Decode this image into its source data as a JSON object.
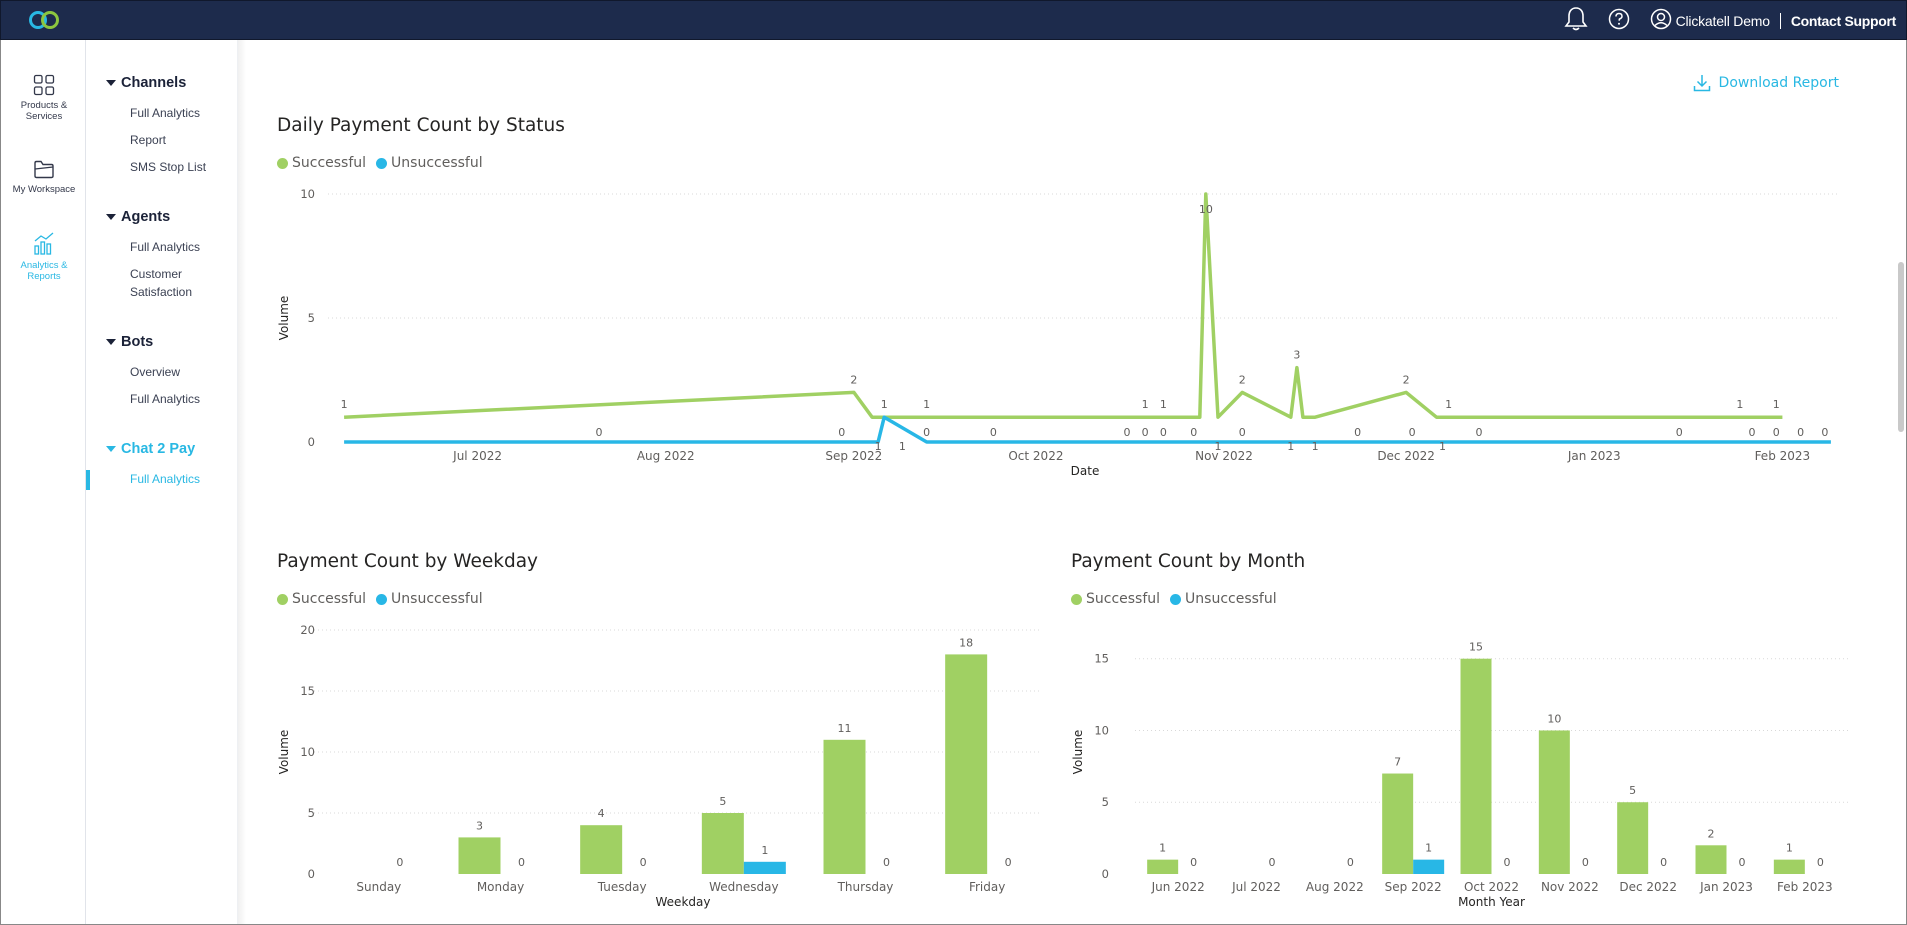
{
  "topbar": {
    "user_name": "Clickatell Demo",
    "contact_support": "Contact Support",
    "brand_color": "#1d2b4c",
    "accent_color": "#29b8e3"
  },
  "rail": {
    "items": [
      {
        "label_line1": "Products &",
        "label_line2": "Services",
        "icon": "grid-icon"
      },
      {
        "label_line1": "My Workspace",
        "label_line2": "",
        "icon": "folder-icon"
      },
      {
        "label_line1": "Analytics &",
        "label_line2": "Reports",
        "icon": "bar-chart-icon"
      }
    ]
  },
  "nav": {
    "sections": [
      {
        "label": "Channels",
        "links": [
          "Full Analytics",
          "Report",
          "SMS Stop List"
        ]
      },
      {
        "label": "Agents",
        "links": [
          "Full Analytics",
          "Customer",
          "Satisfaction"
        ]
      },
      {
        "label": "Bots",
        "links": [
          "Overview",
          "Full Analytics"
        ]
      },
      {
        "label": "Chat 2 Pay",
        "links": [
          "Full Analytics"
        ]
      }
    ]
  },
  "main": {
    "download_label": "Download Report"
  },
  "legend": {
    "successful": "Successful",
    "unsuccessful": "Unsuccessful",
    "successful_color": "#a0d063",
    "unsuccessful_color": "#28b7e6"
  },
  "chart_data": [
    {
      "id": "daily",
      "type": "line",
      "title": "Daily Payment Count by Status",
      "xlabel": "Date",
      "ylabel": "Volume",
      "ylim": [
        0,
        10
      ],
      "yticks": [
        0,
        5,
        10
      ],
      "xticks": [
        "Jul 2022",
        "Aug 2022",
        "Sep 2022",
        "Oct 2022",
        "Nov 2022",
        "Dec 2022",
        "Jan 2023",
        "Feb 2023"
      ],
      "grid": true,
      "legend_position": "top-left",
      "series": [
        {
          "name": "Successful",
          "color": "#a0d063",
          "points": [
            [
              "2022-06-09",
              1
            ],
            [
              "2022-09-01",
              2
            ],
            [
              "2022-09-04",
              1
            ],
            [
              "2022-09-10",
              1
            ],
            [
              "2022-10-25",
              1
            ],
            [
              "2022-10-28",
              1
            ],
            [
              "2022-10-29",
              10
            ],
            [
              "2022-10-31",
              1
            ],
            [
              "2022-11-04",
              2
            ],
            [
              "2022-11-12",
              1
            ],
            [
              "2022-11-13",
              3
            ],
            [
              "2022-11-14",
              1
            ],
            [
              "2022-11-16",
              1
            ],
            [
              "2022-12-01",
              2
            ],
            [
              "2022-12-06",
              1
            ],
            [
              "2023-01-01",
              1
            ],
            [
              "2023-02-01",
              1
            ]
          ],
          "labels": [
            [
              "2022-06-09",
              1
            ],
            [
              "2022-09-01",
              2
            ],
            [
              "2022-09-06",
              1
            ],
            [
              "2022-09-13",
              1
            ],
            [
              "2022-10-19",
              1
            ],
            [
              "2022-10-22",
              1
            ],
            [
              "2022-10-29",
              10
            ],
            [
              "2022-11-04",
              2
            ],
            [
              "2022-11-13",
              3
            ],
            [
              "2022-12-01",
              2
            ],
            [
              "2022-12-08",
              1
            ],
            [
              "2023-01-25",
              1
            ],
            [
              "2023-01-31",
              1
            ]
          ]
        },
        {
          "name": "Unsuccessful",
          "color": "#28b7e6",
          "points": [
            [
              "2022-06-09",
              0
            ],
            [
              "2022-09-05",
              0
            ],
            [
              "2022-09-06",
              1
            ],
            [
              "2022-09-13",
              0
            ],
            [
              "2023-02-09",
              0
            ]
          ],
          "labels": [
            [
              "2022-07-21",
              0
            ],
            [
              "2022-08-30",
              0
            ],
            [
              "2022-09-05",
              1
            ],
            [
              "2022-09-09",
              1
            ],
            [
              "2022-09-13",
              0
            ],
            [
              "2022-09-24",
              0
            ],
            [
              "2022-10-16",
              0
            ],
            [
              "2022-10-19",
              0
            ],
            [
              "2022-10-22",
              0
            ],
            [
              "2022-10-27",
              0
            ],
            [
              "2022-10-31",
              1
            ],
            [
              "2022-11-04",
              0
            ],
            [
              "2022-11-12",
              1
            ],
            [
              "2022-11-16",
              1
            ],
            [
              "2022-11-23",
              0
            ],
            [
              "2022-12-02",
              0
            ],
            [
              "2022-12-07",
              1
            ],
            [
              "2022-12-13",
              0
            ],
            [
              "2023-01-15",
              0
            ],
            [
              "2023-01-27",
              0
            ],
            [
              "2023-01-31",
              0
            ],
            [
              "2023-02-04",
              0
            ],
            [
              "2023-02-08",
              0
            ]
          ]
        }
      ]
    },
    {
      "id": "weekday",
      "type": "bar",
      "title": "Payment Count by Weekday",
      "xlabel": "Weekday",
      "ylabel": "Volume",
      "ylim": [
        0,
        20
      ],
      "yticks": [
        0,
        5,
        10,
        15,
        20
      ],
      "grid": true,
      "legend_position": "top-left",
      "categories": [
        "Sunday",
        "Monday",
        "Tuesday",
        "Wednesday",
        "Thursday",
        "Friday"
      ],
      "series": [
        {
          "name": "Successful",
          "color": "#a0d063",
          "values": [
            null,
            3,
            4,
            5,
            11,
            18
          ]
        },
        {
          "name": "Unsuccessful",
          "color": "#28b7e6",
          "values": [
            0,
            0,
            0,
            1,
            0,
            0
          ]
        }
      ]
    },
    {
      "id": "month",
      "type": "bar",
      "title": "Payment Count by Month",
      "xlabel": "Month Year",
      "ylabel": "Volume",
      "ylim": [
        0,
        17
      ],
      "yticks": [
        0,
        5,
        10,
        15
      ],
      "grid": true,
      "legend_position": "top-left",
      "categories": [
        "Jun 2022",
        "Jul 2022",
        "Aug 2022",
        "Sep 2022",
        "Oct 2022",
        "Nov 2022",
        "Dec 2022",
        "Jan 2023",
        "Feb 2023"
      ],
      "series": [
        {
          "name": "Successful",
          "color": "#a0d063",
          "values": [
            1,
            null,
            null,
            7,
            15,
            10,
            5,
            2,
            1
          ]
        },
        {
          "name": "Unsuccessful",
          "color": "#28b7e6",
          "values": [
            0,
            0,
            0,
            1,
            0,
            0,
            0,
            0,
            0
          ]
        }
      ]
    }
  ]
}
